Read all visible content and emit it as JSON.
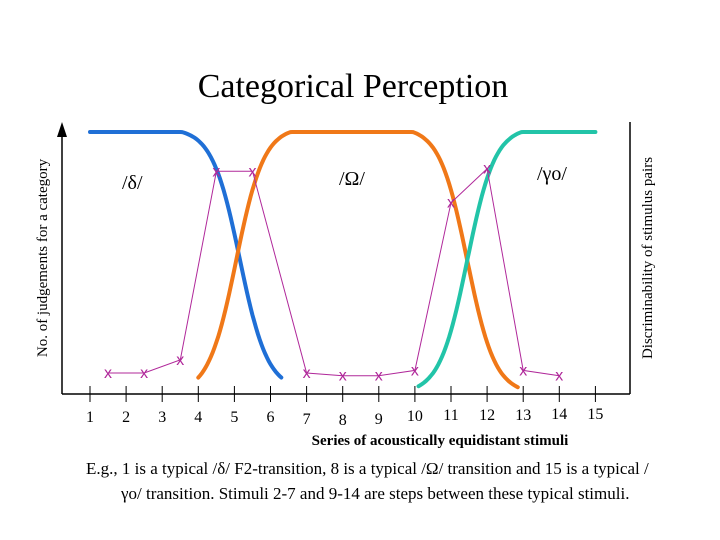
{
  "chart_data": {
    "type": "line",
    "title": "Categorical Perception",
    "xlabel": "Series of acoustically equidistant stimuli",
    "ylabel_left": "No. of judgements for a category",
    "ylabel_right": "Discriminability of stimulus pairs",
    "x_ticks": [
      "1",
      "2",
      "3",
      "4",
      "5",
      "6",
      "7",
      "8",
      "9",
      "10",
      "11",
      "12",
      "13",
      "14",
      "15"
    ],
    "category_labels": [
      "/δ/",
      "/Ω/",
      "/γo/"
    ],
    "identification_colors": [
      "#1f6fd6",
      "#f07818",
      "#22c4a8"
    ],
    "discrimination_color": "#b0289a",
    "marker_symbol": "x",
    "discrimination_points": [
      {
        "x": 1.5,
        "y": 0.08
      },
      {
        "x": 2.5,
        "y": 0.08
      },
      {
        "x": 3.5,
        "y": 0.13
      },
      {
        "x": 4.5,
        "y": 0.85
      },
      {
        "x": 5.5,
        "y": 0.85
      },
      {
        "x": 7.0,
        "y": 0.08
      },
      {
        "x": 8.0,
        "y": 0.07
      },
      {
        "x": 9.0,
        "y": 0.07
      },
      {
        "x": 10.0,
        "y": 0.09
      },
      {
        "x": 11.0,
        "y": 0.73
      },
      {
        "x": 12.0,
        "y": 0.86
      },
      {
        "x": 13.0,
        "y": 0.09
      },
      {
        "x": 14.0,
        "y": 0.07
      }
    ],
    "grid": false
  },
  "caption": {
    "line1": "E.g., 1 is a typical /δ/ F2-transition, 8 is a typical /Ω/ transition and 15",
    "line2": "is a typical /γo/ transition. Stimuli 2-7 and 9-14 are steps between",
    "line3": "these typical stimuli."
  }
}
